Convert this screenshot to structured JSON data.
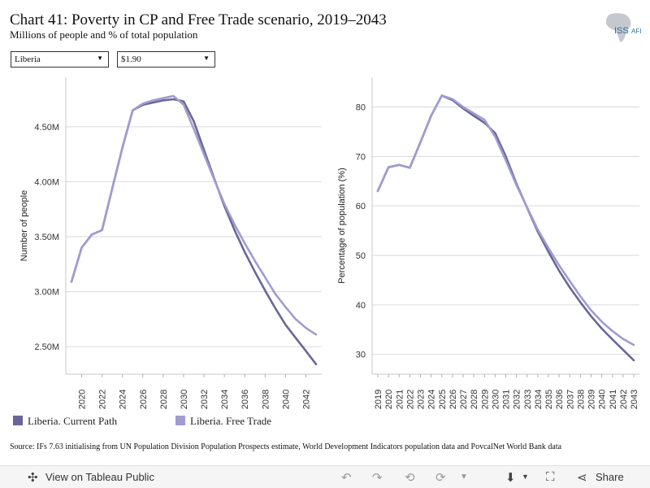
{
  "header": {
    "title": "Chart 41: Poverty in CP and Free Trade scenario, 2019–2043",
    "subtitle": "Millions of people and % of total population",
    "logo_text": "ISS",
    "logo_suffix": "AFI"
  },
  "filters": {
    "country": "Liberia",
    "poverty_line": "$1.90"
  },
  "legend": {
    "current": "Liberia. Current Path",
    "free": "Liberia. Free Trade"
  },
  "colors": {
    "current_path": "#6b6699",
    "free_trade": "#a09cd0",
    "gridline": "#d9d9d9",
    "axis": "#888888"
  },
  "source": "Source: IFs 7.63 initialising from UN Population Division Population Prospects estimate, World Development Indicators population data and PovcalNet World Bank data",
  "toolbar": {
    "view_label": "View on Tableau Public",
    "share_label": "Share",
    "icons": [
      "tableau-icon",
      "undo-icon",
      "redo-icon",
      "revert-icon",
      "refresh-icon",
      "download-icon",
      "fullscreen-icon",
      "share-icon"
    ]
  },
  "chart_data": [
    {
      "type": "line",
      "xlabel": "",
      "ylabel": "Number of people",
      "ylim": [
        2250000,
        4950000
      ],
      "yticks": [
        2500000,
        3000000,
        3500000,
        4000000,
        4500000
      ],
      "yticklabels": [
        "2.50M",
        "3.00M",
        "3.50M",
        "4.00M",
        "4.50M"
      ],
      "xlim": [
        2019,
        2043
      ],
      "xticks": [
        2020,
        2022,
        2024,
        2026,
        2028,
        2030,
        2032,
        2034,
        2036,
        2038,
        2040,
        2042
      ],
      "xticklabels": [
        "2020",
        "2022",
        "2024",
        "2026",
        "2028",
        "2030",
        "2032",
        "2034",
        "2036",
        "2038",
        "2040",
        "2042"
      ],
      "grid": true,
      "x": [
        2019,
        2020,
        2021,
        2022,
        2023,
        2024,
        2025,
        2026,
        2027,
        2028,
        2029,
        2030,
        2031,
        2032,
        2033,
        2034,
        2035,
        2036,
        2037,
        2038,
        2039,
        2040,
        2041,
        2042,
        2043
      ],
      "series": [
        {
          "name": "Liberia. Current Path",
          "values": [
            3090000,
            3400000,
            3520000,
            3560000,
            3940000,
            4310000,
            4650000,
            4710000,
            4740000,
            4760000,
            4780000,
            4700000,
            4480000,
            4250000,
            4020000,
            3800000,
            3610000,
            3440000,
            3280000,
            3130000,
            2980000,
            2860000,
            2750000,
            2670000,
            2610000
          ]
        },
        {
          "name": "Liberia. Free Trade",
          "values": [
            3090000,
            3400000,
            3520000,
            3560000,
            3940000,
            4310000,
            4650000,
            4700000,
            4720000,
            4740000,
            4750000,
            4730000,
            4550000,
            4290000,
            4030000,
            3780000,
            3560000,
            3360000,
            3180000,
            3010000,
            2850000,
            2700000,
            2580000,
            2460000,
            2340000
          ]
        }
      ]
    },
    {
      "type": "line",
      "xlabel": "",
      "ylabel": "Percentage of population (%)",
      "ylim": [
        26,
        86
      ],
      "yticks": [
        30,
        40,
        50,
        60,
        70,
        80
      ],
      "yticklabels": [
        "30",
        "40",
        "50",
        "60",
        "70",
        "80"
      ],
      "xlim": [
        2019,
        2043
      ],
      "xticks": [
        2019,
        2020,
        2021,
        2022,
        2023,
        2024,
        2025,
        2026,
        2027,
        2028,
        2029,
        2030,
        2031,
        2032,
        2033,
        2034,
        2035,
        2036,
        2037,
        2038,
        2039,
        2040,
        2041,
        2042,
        2043
      ],
      "xticklabels": [
        "2019",
        "2020",
        "2021",
        "2022",
        "2023",
        "2024",
        "2025",
        "2026",
        "2027",
        "2028",
        "2029",
        "2030",
        "2031",
        "2032",
        "2033",
        "2034",
        "2035",
        "2036",
        "2037",
        "2038",
        "2039",
        "2040",
        "2041",
        "2042",
        "2043"
      ],
      "grid": true,
      "x": [
        2019,
        2020,
        2021,
        2022,
        2023,
        2024,
        2025,
        2026,
        2027,
        2028,
        2029,
        2030,
        2031,
        2032,
        2033,
        2034,
        2035,
        2036,
        2037,
        2038,
        2039,
        2040,
        2041,
        2042,
        2043
      ],
      "series": [
        {
          "name": "Liberia. Current Path",
          "values": [
            63.0,
            67.8,
            68.3,
            67.7,
            72.9,
            78.2,
            82.3,
            81.6,
            80.0,
            78.7,
            77.4,
            74.0,
            69.2,
            64.2,
            59.7,
            55.2,
            51.5,
            48.0,
            44.8,
            41.7,
            38.9,
            36.6,
            34.7,
            33.1,
            31.9
          ]
        },
        {
          "name": "Liberia. Free Trade",
          "values": [
            63.0,
            67.8,
            68.3,
            67.7,
            72.9,
            78.2,
            82.3,
            81.4,
            79.7,
            78.2,
            76.8,
            74.7,
            70.0,
            64.5,
            59.6,
            54.8,
            50.7,
            46.9,
            43.5,
            40.5,
            37.7,
            35.2,
            33.0,
            30.9,
            28.8
          ]
        }
      ]
    }
  ]
}
